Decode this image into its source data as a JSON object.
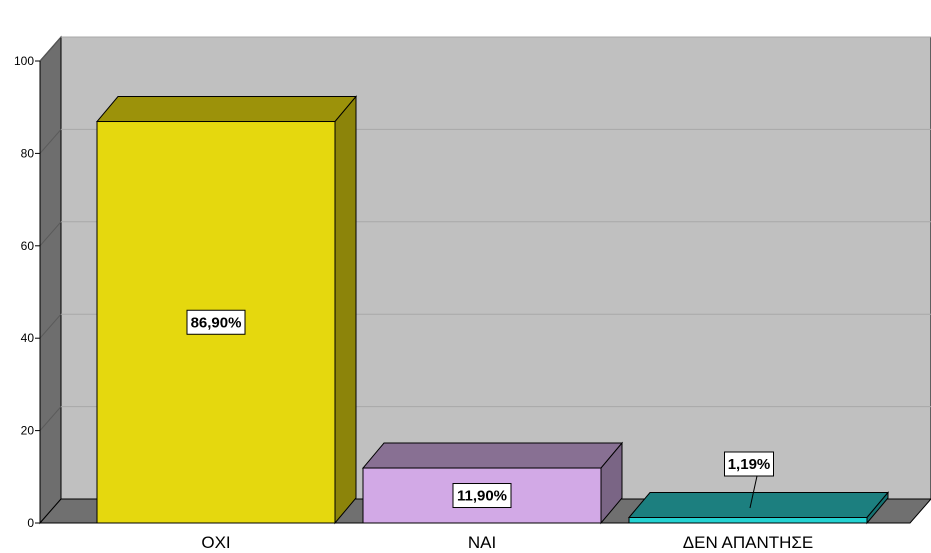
{
  "chart_data": {
    "type": "bar",
    "style": "3d",
    "categories": [
      "ΟΧΙ",
      "ΝΑΙ",
      "ΔΕΝ ΑΠΑΝΤΗΣΕ"
    ],
    "values": [
      86.9,
      11.9,
      1.19
    ],
    "data_labels": [
      "86,90%",
      "11,90%",
      "1,19%"
    ],
    "yticks": [
      "0",
      "20",
      "40",
      "60",
      "80",
      "100"
    ],
    "ylim": [
      0,
      100
    ],
    "grid": true,
    "colors": {
      "bars": [
        {
          "front": "#e5d80e",
          "top": "#9c920a",
          "side": "#8c840a"
        },
        {
          "front": "#d2a9e6",
          "top": "#887093",
          "side": "#7a6585"
        },
        {
          "front": "#24d2d2",
          "top": "#1c7f7f",
          "side": "#167272"
        }
      ],
      "wall": "#c0c0c0",
      "side_wall": "#6e6e6e",
      "floor": "#707070",
      "gridline": "#a8a8a8"
    }
  }
}
